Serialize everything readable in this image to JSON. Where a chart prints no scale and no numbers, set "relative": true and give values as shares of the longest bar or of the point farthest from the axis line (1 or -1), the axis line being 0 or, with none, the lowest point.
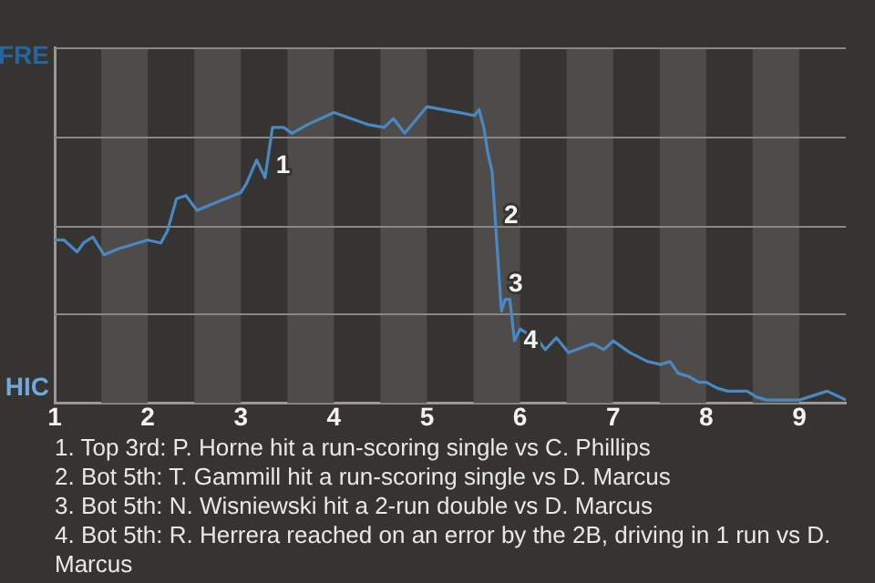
{
  "chart_data": {
    "type": "line",
    "relative": true,
    "x": [
      1,
      1.1,
      1.24,
      1.31,
      1.41,
      1.53,
      1.68,
      2,
      2.14,
      2.21,
      2.31,
      2.41,
      2.53,
      2.68,
      3,
      3.06,
      3.17,
      3.26,
      3.34,
      3.46,
      3.55,
      3.72,
      4,
      4.36,
      4.54,
      4.64,
      4.76,
      5,
      5.35,
      5.51,
      5.56,
      5.61,
      5.65,
      5.7,
      5.75,
      5.8,
      5.84,
      5.89,
      5.94,
      6,
      6.2,
      6.27,
      6.39,
      6.52,
      6.78,
      6.9,
      7,
      7.18,
      7.37,
      7.51,
      7.61,
      7.7,
      7.81,
      7.92,
      8,
      8.12,
      8.23,
      8.34,
      8.44,
      8.54,
      8.65,
      9,
      9.3,
      9.5
    ],
    "values": [
      0.55,
      0.55,
      0.51,
      0.54,
      0.56,
      0.5,
      0.52,
      0.55,
      0.54,
      0.58,
      0.69,
      0.7,
      0.65,
      0.67,
      0.71,
      0.74,
      0.82,
      0.76,
      0.93,
      0.93,
      0.91,
      0.94,
      0.98,
      0.94,
      0.93,
      0.96,
      0.91,
      1,
      0.98,
      0.97,
      0.99,
      0.93,
      0.85,
      0.78,
      0.54,
      0.31,
      0.35,
      0.35,
      0.21,
      0.25,
      0.21,
      0.18,
      0.22,
      0.17,
      0.2,
      0.18,
      0.21,
      0.17,
      0.14,
      0.13,
      0.14,
      0.1,
      0.09,
      0.07,
      0.07,
      0.05,
      0.04,
      0.04,
      0.04,
      0.02,
      0.01,
      0.01,
      0.04,
      0.01
    ],
    "color": "#4a88c4",
    "xlim": [
      1,
      9.5
    ],
    "xticks": [
      1,
      2,
      3,
      4,
      5,
      6,
      7,
      8,
      9
    ],
    "grid": "y",
    "legend": false,
    "marker": "none",
    "line_style": "solid",
    "bands": [
      {
        "axis": "x",
        "from": 1.5,
        "to": 2,
        "color": "#4e4c49"
      },
      {
        "axis": "x",
        "from": 2.5,
        "to": 3,
        "color": "#4e4c49"
      },
      {
        "axis": "x",
        "from": 3.5,
        "to": 4,
        "color": "#4e4c49"
      },
      {
        "axis": "x",
        "from": 4.5,
        "to": 5,
        "color": "#4e4c49"
      },
      {
        "axis": "x",
        "from": 5.5,
        "to": 6,
        "color": "#4e4c49"
      },
      {
        "axis": "x",
        "from": 6.5,
        "to": 7,
        "color": "#4e4c49"
      },
      {
        "axis": "x",
        "from": 7.5,
        "to": 8,
        "color": "#4e4c49"
      },
      {
        "axis": "x",
        "from": 8.5,
        "to": 9,
        "color": "#4e4c49"
      }
    ],
    "annotations": [
      "FRE",
      "HIC",
      {
        "text": "1",
        "x": 3.28,
        "y": 0.8
      },
      {
        "text": "2",
        "x": 5.73,
        "y": 0.63
      },
      {
        "text": "3",
        "x": 5.78,
        "y": 0.4
      },
      {
        "text": "4",
        "x": 5.94,
        "y": 0.21
      },
      "1. Top 3rd: P. Horne hit a run-scoring single vs C. Phillips",
      "2. Bot 5th: T. Gammill hit a run-scoring single vs D. Marcus",
      "3. Bot 5th: N. Wisniewski hit a 2-run double vs D. Marcus",
      "4. Bot 5th: R. Herrera reached on an error by the 2B, driving in 1 run vs D. Marcus"
    ]
  }
}
